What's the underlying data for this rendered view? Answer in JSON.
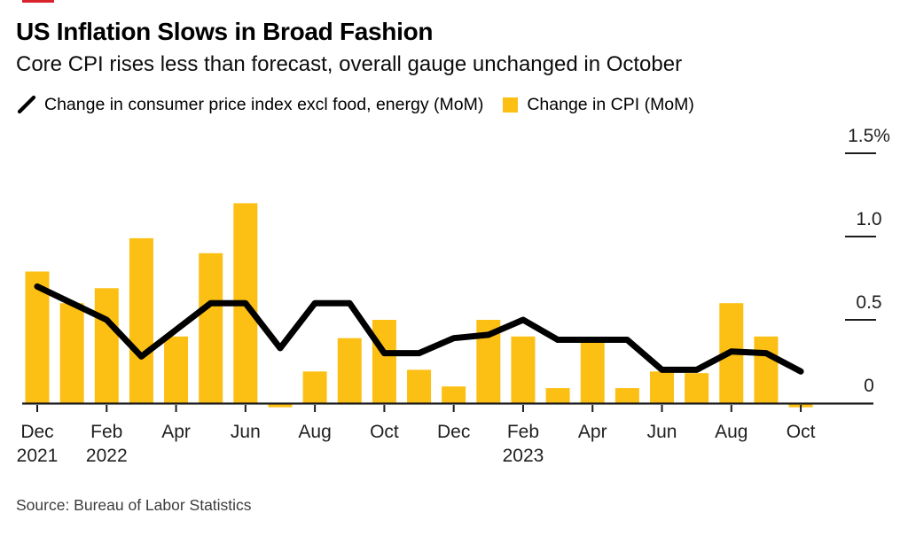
{
  "header": {
    "title": "US Inflation Slows in Broad Fashion",
    "subtitle": "Core CPI rises less than forecast, overall gauge unchanged in October"
  },
  "colors": {
    "bar_yellow": "#fcbf14",
    "line_black": "#000000",
    "axis_dark": "#1c1c1c",
    "accent_red": "#d8232a"
  },
  "footer": {
    "source": "Source: Bureau of Labor Statistics"
  },
  "chart_data": {
    "type": "bar",
    "title": "US Inflation Slows in Broad Fashion",
    "subtitle": "Core CPI rises less than forecast, overall gauge unchanged in October",
    "categories": [
      "Dec 2021",
      "Jan 2022",
      "Feb 2022",
      "Mar 2022",
      "Apr 2022",
      "May 2022",
      "Jun 2022",
      "Jul 2022",
      "Aug 2022",
      "Sep 2022",
      "Oct 2022",
      "Nov 2022",
      "Dec 2022",
      "Jan 2023",
      "Feb 2023",
      "Mar 2023",
      "Apr 2023",
      "May 2023",
      "Jun 2023",
      "Jul 2023",
      "Aug 2023",
      "Sep 2023",
      "Oct 2023"
    ],
    "series": [
      {
        "name": "Change in consumer price index excl food, energy (MoM)",
        "type": "line",
        "marker": "slash-icon",
        "values": [
          0.7,
          0.6,
          0.5,
          0.28,
          0.44,
          0.6,
          0.6,
          0.33,
          0.6,
          0.6,
          0.3,
          0.3,
          0.39,
          0.41,
          0.5,
          0.38,
          0.38,
          0.38,
          0.2,
          0.2,
          0.31,
          0.3,
          0.19
        ]
      },
      {
        "name": "Change in CPI (MoM)",
        "type": "bar",
        "marker": "square-icon",
        "values": [
          0.79,
          0.6,
          0.69,
          0.99,
          0.4,
          0.9,
          1.2,
          -0.01,
          0.19,
          0.39,
          0.5,
          0.2,
          0.1,
          0.5,
          0.4,
          0.09,
          0.37,
          0.09,
          0.19,
          0.18,
          0.6,
          0.4,
          -0.01
        ]
      }
    ],
    "ylim": [
      0,
      1.5
    ],
    "ylabel": "",
    "xlabel": "",
    "grid": false,
    "legend_position": "top",
    "y_axis": {
      "side": "right",
      "ticks": [
        {
          "value": 0,
          "label": "0",
          "tick_line": false
        },
        {
          "value": 0.5,
          "label": "0.5",
          "tick_line": true
        },
        {
          "value": 1.0,
          "label": "1.0",
          "tick_line": true
        },
        {
          "value": 1.5,
          "label": "1.5%",
          "tick_line": true
        }
      ]
    },
    "x_axis": {
      "tick_labels": [
        {
          "i": 0,
          "label": "Dec",
          "year": "2021"
        },
        {
          "i": 2,
          "label": "Feb",
          "year": "2022"
        },
        {
          "i": 4,
          "label": "Apr"
        },
        {
          "i": 6,
          "label": "Jun"
        },
        {
          "i": 8,
          "label": "Aug"
        },
        {
          "i": 10,
          "label": "Oct"
        },
        {
          "i": 12,
          "label": "Dec"
        },
        {
          "i": 14,
          "label": "Feb",
          "year": "2023"
        },
        {
          "i": 16,
          "label": "Apr"
        },
        {
          "i": 18,
          "label": "Jun"
        },
        {
          "i": 20,
          "label": "Aug"
        },
        {
          "i": 22,
          "label": "Oct"
        }
      ]
    }
  }
}
